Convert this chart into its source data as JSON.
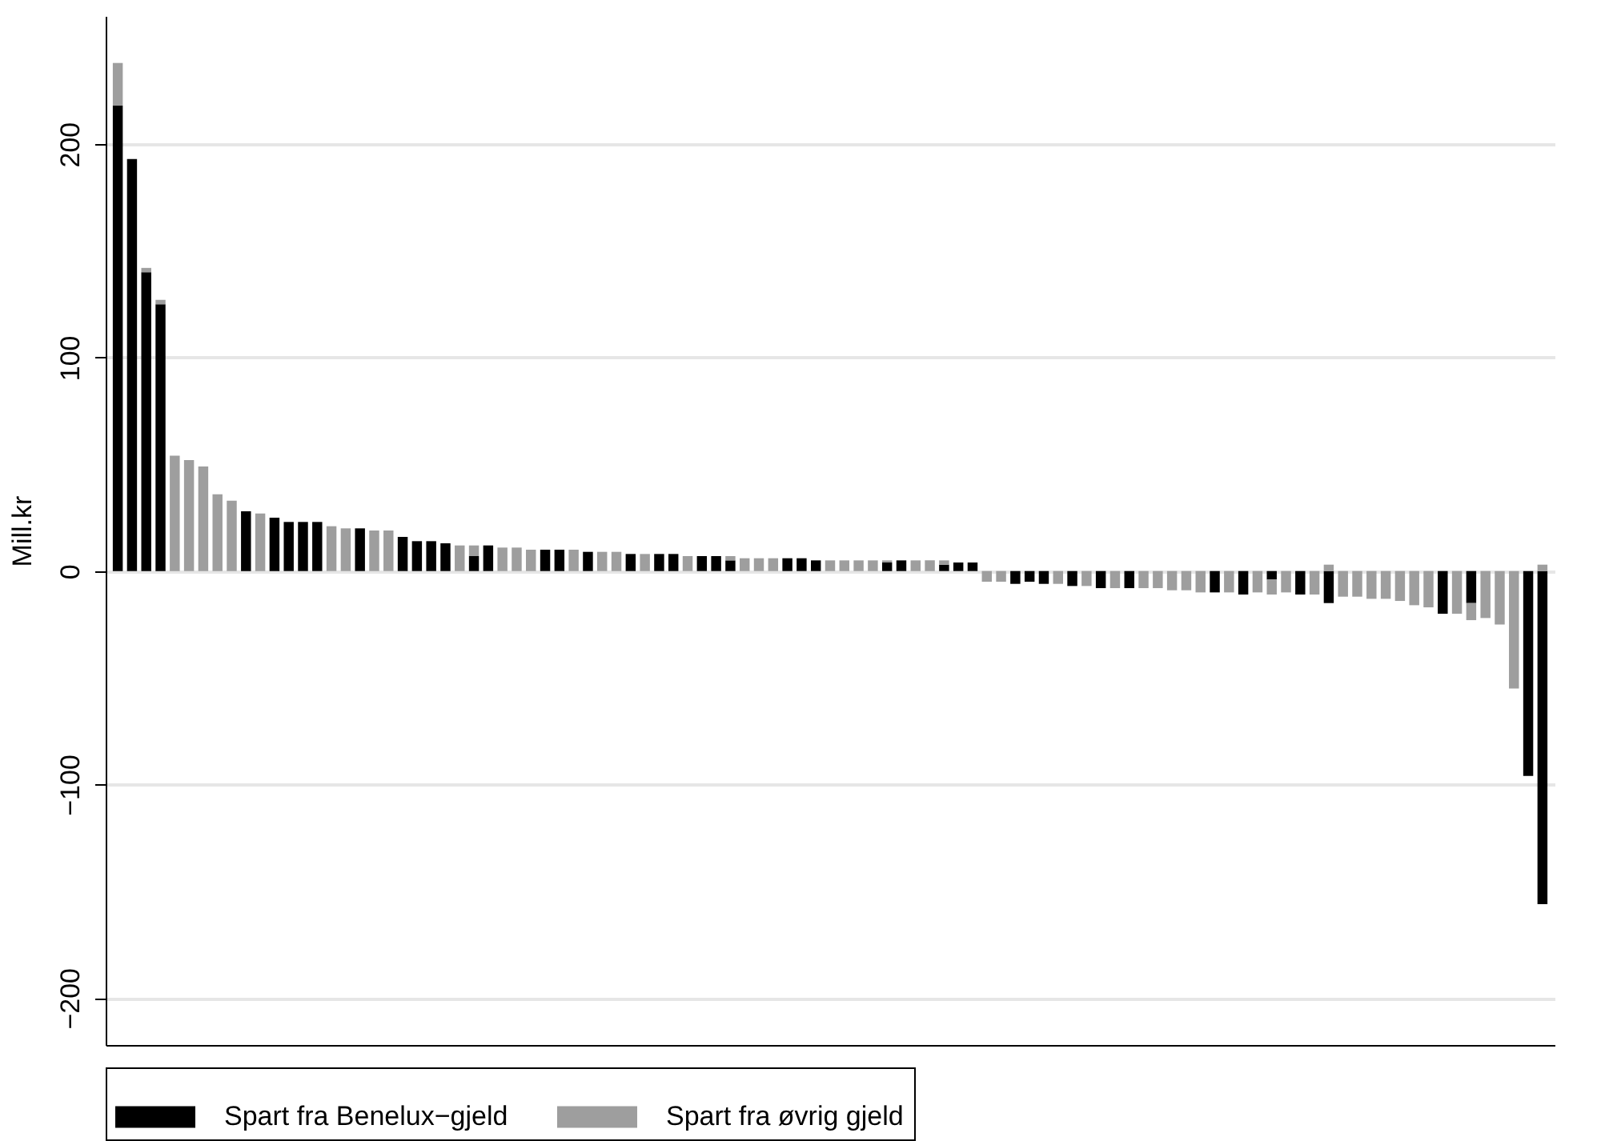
{
  "chart_data": {
    "type": "bar",
    "stacked": true,
    "ylabel": "Mill.kr",
    "ylim": [
      -222,
      260
    ],
    "yticks": [
      -200,
      -100,
      0,
      100,
      200
    ],
    "grid": "y",
    "legend": "bottom",
    "categories": [
      null,
      null,
      null,
      null,
      null,
      null,
      null,
      null,
      null,
      null,
      null,
      null,
      null,
      null,
      null,
      null,
      null,
      null,
      null,
      null,
      null,
      null,
      null,
      null,
      null,
      null,
      null,
      null,
      null,
      null,
      null,
      null,
      null,
      null,
      null,
      null,
      null,
      null,
      null,
      null,
      null,
      null,
      null,
      null,
      null,
      null,
      null,
      null,
      null,
      null,
      null,
      null,
      null,
      null,
      null,
      null,
      null,
      null,
      null,
      null,
      null,
      null,
      null,
      null,
      null,
      null,
      null,
      null,
      null,
      null,
      null,
      null,
      null,
      null,
      null,
      null,
      null,
      null,
      null,
      null,
      null,
      null,
      null,
      null,
      null,
      null,
      null,
      null,
      null,
      null,
      null,
      null,
      null,
      null,
      null,
      null,
      null,
      null,
      null,
      null,
      null
    ],
    "series": [
      {
        "name": "Spart fra Benelux−gjeld",
        "color": "#000000",
        "values": [
          218,
          193,
          140,
          125,
          null,
          null,
          null,
          null,
          null,
          28,
          null,
          25,
          23,
          23,
          23,
          null,
          null,
          20,
          null,
          null,
          16,
          14,
          14,
          13,
          null,
          7,
          12,
          null,
          null,
          null,
          10,
          10,
          null,
          9,
          null,
          null,
          8,
          null,
          8,
          8,
          null,
          7,
          7,
          5,
          null,
          null,
          null,
          6,
          6,
          5,
          null,
          null,
          null,
          null,
          4,
          5,
          null,
          null,
          3,
          4,
          4,
          null,
          null,
          -6,
          -5,
          -6,
          null,
          -7,
          null,
          -8,
          null,
          -8,
          null,
          null,
          null,
          null,
          null,
          -10,
          null,
          -11,
          null,
          -4,
          null,
          -11,
          null,
          -15,
          null,
          null,
          null,
          null,
          null,
          null,
          null,
          -20,
          null,
          -15,
          null,
          null,
          null,
          -96,
          -156
        ]
      },
      {
        "name": "Spart fra øvrig gjeld",
        "color": "#9e9e9e",
        "values": [
          20,
          null,
          2,
          2,
          54,
          52,
          49,
          36,
          33,
          null,
          27,
          null,
          null,
          null,
          null,
          21,
          20,
          null,
          19,
          19,
          null,
          null,
          null,
          null,
          12,
          5,
          null,
          11,
          11,
          10,
          null,
          null,
          10,
          null,
          9,
          9,
          null,
          8,
          null,
          null,
          7,
          null,
          null,
          2,
          6,
          6,
          6,
          null,
          null,
          null,
          5,
          5,
          5,
          5,
          1,
          null,
          5,
          5,
          2,
          null,
          null,
          -5,
          -5,
          null,
          null,
          null,
          -6,
          null,
          -7,
          null,
          -8,
          null,
          -8,
          -8,
          -9,
          -9,
          -10,
          null,
          -10,
          null,
          -10,
          -7,
          -10,
          null,
          -11,
          3,
          -12,
          -12,
          -13,
          -13,
          -14,
          -16,
          -17,
          null,
          -20,
          -8,
          -22,
          -25,
          -55,
          null,
          3
        ]
      }
    ]
  }
}
